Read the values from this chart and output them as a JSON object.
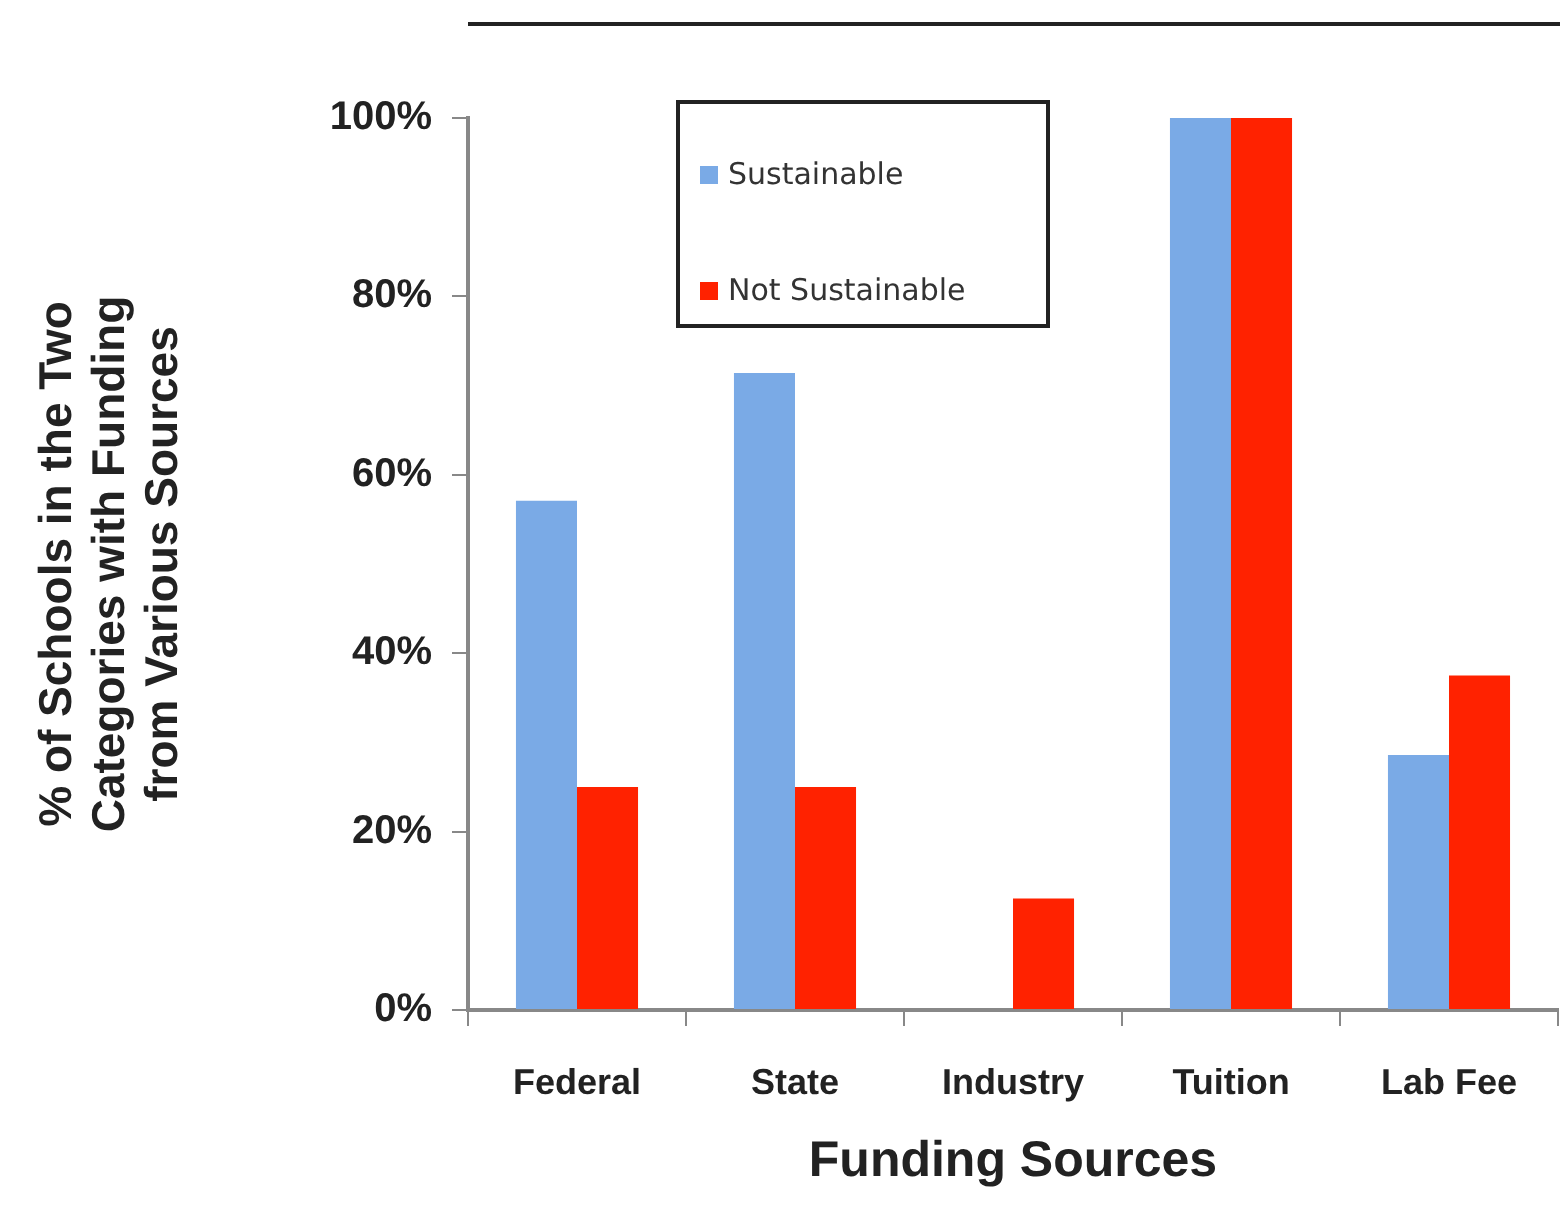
{
  "chart_data": {
    "type": "bar",
    "xlabel": "Funding Sources",
    "ylabel": "% of Schools in the Two Categories with Funding from Various Sources",
    "categories": [
      "Federal",
      "State",
      "Industry",
      "Tuition",
      "Lab Fee"
    ],
    "series": [
      {
        "name": "Sustainable",
        "color": "#7aaae6",
        "values": [
          57.1,
          71.4,
          0,
          100,
          28.6
        ]
      },
      {
        "name": "Not Sustainable",
        "color": "#ff2200",
        "values": [
          25,
          25,
          12.5,
          100,
          37.5
        ]
      }
    ],
    "ylim": [
      0,
      100
    ],
    "yticks": [
      {
        "value": 0,
        "label": "0%"
      },
      {
        "value": 20,
        "label": "20%"
      },
      {
        "value": 40,
        "label": "40%"
      },
      {
        "value": 60,
        "label": "60%"
      },
      {
        "value": 80,
        "label": "80%"
      },
      {
        "value": 100,
        "label": "100%"
      }
    ],
    "grid": false,
    "legend": "top left"
  }
}
